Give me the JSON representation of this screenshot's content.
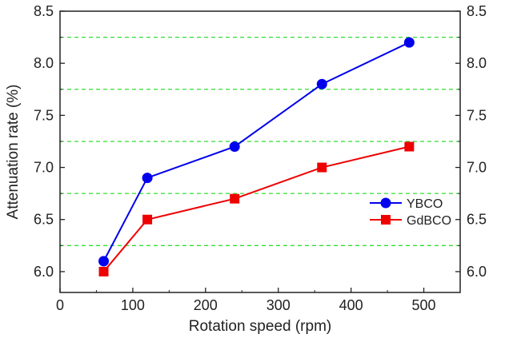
{
  "chart_data": {
    "type": "line",
    "title": "",
    "xlabel": "Rotation speed (rpm)",
    "ylabel": "Attenuation rate (%)",
    "xlim": [
      0,
      550
    ],
    "ylim": [
      5.8,
      8.5
    ],
    "x_ticks": [
      0,
      100,
      200,
      300,
      400,
      500
    ],
    "x_tick_labels": [
      "0",
      "100",
      "200",
      "300",
      "400",
      "500"
    ],
    "y_ticks": [
      6.0,
      6.5,
      7.0,
      7.5,
      8.0,
      8.5
    ],
    "y_tick_labels": [
      "6.0",
      "6.5",
      "7.0",
      "7.5",
      "8.0",
      "8.5"
    ],
    "right_axis_mirrored": true,
    "reference_lines": [
      6.25,
      6.75,
      7.25,
      7.75,
      8.25
    ],
    "reference_line_color": "#33dd33",
    "reference_line_style": "dashed",
    "legend_position": "right",
    "series": [
      {
        "name": "YBCO",
        "color": "#0000ee",
        "marker": "circle",
        "x": [
          60,
          120,
          240,
          360,
          480
        ],
        "y": [
          6.1,
          6.9,
          7.2,
          7.8,
          8.2
        ]
      },
      {
        "name": "GdBCO",
        "color": "#ee0000",
        "marker": "square",
        "x": [
          60,
          120,
          240,
          360,
          480
        ],
        "y": [
          6.0,
          6.5,
          6.7,
          7.0,
          7.2
        ]
      }
    ]
  }
}
